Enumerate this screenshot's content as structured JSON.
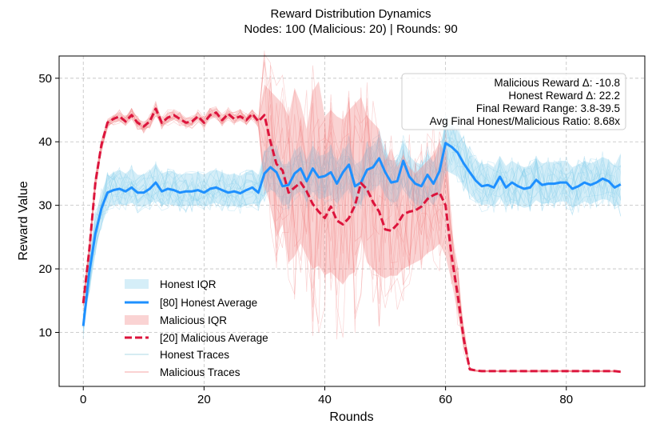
{
  "chart_data": {
    "type": "line",
    "title": "Reward Distribution Dynamics",
    "subtitle": "Nodes: 100 (Malicious: 20) | Rounds: 90",
    "xlabel": "Rounds",
    "ylabel": "Reward Value",
    "xlim": [
      -4,
      93
    ],
    "ylim": [
      1.5,
      53.5
    ],
    "xticks": [
      0,
      20,
      40,
      60,
      80
    ],
    "yticks": [
      10,
      20,
      30,
      40,
      50
    ],
    "grid": true,
    "legend_position": "lower-left",
    "colors": {
      "honest": "#1e90ff",
      "honest_band": "#87ceeb",
      "malicious": "#dc143c",
      "malicious_band": "#f08080"
    },
    "legend": [
      {
        "label": "Honest IQR",
        "kind": "band",
        "color": "#87ceeb"
      },
      {
        "label": "[80] Honest Average",
        "kind": "line",
        "color": "#1e90ff"
      },
      {
        "label": "Malicious IQR",
        "kind": "band",
        "color": "#f08080"
      },
      {
        "label": "[20] Malicious Average",
        "kind": "dashed",
        "color": "#dc143c"
      },
      {
        "label": "Honest Traces",
        "kind": "thin",
        "color": "#add8e6"
      },
      {
        "label": "Malicious Traces",
        "kind": "thin",
        "color": "#f4a6a6"
      }
    ],
    "annotations": [
      "Malicious Reward Δ: -10.8",
      "Honest Reward Δ: 22.2",
      "Final Reward Range: 3.8-39.5",
      "Avg Final Honest/Malicious Ratio: 8.68x"
    ],
    "x": [
      0,
      1,
      2,
      3,
      4,
      5,
      6,
      7,
      8,
      9,
      10,
      11,
      12,
      13,
      14,
      15,
      16,
      17,
      18,
      19,
      20,
      21,
      22,
      23,
      24,
      25,
      26,
      27,
      28,
      29,
      30,
      31,
      32,
      33,
      34,
      35,
      36,
      37,
      38,
      39,
      40,
      41,
      42,
      43,
      44,
      45,
      46,
      47,
      48,
      49,
      50,
      51,
      52,
      53,
      54,
      55,
      56,
      57,
      58,
      59,
      60,
      61,
      62,
      63,
      64,
      65,
      66,
      67,
      68,
      69,
      70,
      71,
      72,
      73,
      74,
      75,
      76,
      77,
      78,
      79,
      80,
      81,
      82,
      83,
      84,
      85,
      86,
      87,
      88,
      89
    ],
    "series": [
      {
        "name": "[80] Honest Average",
        "values": [
          11.0,
          19.5,
          25.5,
          29.5,
          32.0,
          32.4,
          32.6,
          32.2,
          32.8,
          32.0,
          32.0,
          32.6,
          33.6,
          32.2,
          32.6,
          32.4,
          32.0,
          32.2,
          32.2,
          32.4,
          32.0,
          32.6,
          32.8,
          32.4,
          32.0,
          32.2,
          31.9,
          32.4,
          32.8,
          32.0,
          35.0,
          36.0,
          35.2,
          33.0,
          33.2,
          35.0,
          35.8,
          33.8,
          35.8,
          34.4,
          34.6,
          35.2,
          33.4,
          35.2,
          36.4,
          33.0,
          33.6,
          35.6,
          36.0,
          37.4,
          35.2,
          33.6,
          33.8,
          37.0,
          34.5,
          33.4,
          33.0,
          34.8,
          33.4,
          35.4,
          39.8,
          39.2,
          38.3,
          36.6,
          35.2,
          33.9,
          33.0,
          33.2,
          32.8,
          34.5,
          32.8,
          33.6,
          33.0,
          32.6,
          32.8,
          34.0,
          33.2,
          33.4,
          33.4,
          33.6,
          33.6,
          32.6,
          33.0,
          33.6,
          33.2,
          33.6,
          34.2,
          33.8,
          32.8,
          33.3
        ],
        "iqr_low": [
          9.5,
          17.0,
          22.5,
          27.0,
          29.5,
          30.0,
          30.2,
          30.0,
          30.4,
          29.8,
          29.8,
          30.2,
          31.0,
          30.0,
          30.2,
          30.0,
          29.8,
          29.9,
          29.9,
          30.0,
          29.8,
          30.2,
          30.4,
          30.0,
          29.8,
          29.9,
          29.6,
          30.0,
          30.4,
          29.8,
          31.5,
          32.5,
          31.8,
          30.0,
          30.2,
          31.6,
          32.2,
          30.6,
          32.2,
          31.0,
          31.2,
          31.6,
          30.2,
          31.6,
          32.6,
          29.8,
          30.4,
          32.0,
          32.4,
          33.4,
          31.6,
          30.4,
          30.6,
          33.2,
          31.2,
          30.2,
          29.8,
          31.2,
          30.0,
          31.8,
          35.5,
          35.0,
          34.5,
          33.0,
          31.8,
          30.7,
          30.0,
          30.2,
          29.8,
          31.2,
          29.8,
          30.4,
          30.0,
          29.6,
          29.8,
          30.8,
          30.2,
          30.4,
          30.4,
          30.6,
          30.6,
          29.6,
          30.0,
          30.6,
          30.2,
          30.6,
          31.0,
          30.8,
          29.8,
          30.2
        ],
        "iqr_high": [
          12.5,
          22.0,
          28.5,
          32.0,
          34.5,
          35.2,
          35.6,
          35.0,
          35.8,
          34.8,
          34.8,
          35.4,
          36.6,
          35.0,
          35.4,
          35.2,
          34.8,
          35.0,
          35.0,
          35.2,
          34.8,
          35.4,
          35.6,
          35.2,
          34.8,
          35.0,
          34.6,
          35.2,
          35.6,
          34.8,
          38.5,
          39.5,
          38.6,
          36.4,
          36.6,
          38.5,
          39.4,
          37.2,
          39.4,
          37.8,
          38.0,
          38.6,
          36.8,
          38.6,
          39.8,
          36.4,
          37.0,
          39.0,
          39.4,
          40.8,
          38.6,
          37.0,
          37.2,
          40.4,
          37.8,
          36.8,
          36.4,
          38.2,
          36.8,
          38.8,
          43.0,
          42.6,
          41.8,
          40.0,
          38.6,
          37.2,
          36.4,
          36.6,
          36.0,
          37.8,
          36.2,
          37.0,
          36.4,
          36.0,
          36.2,
          37.4,
          36.6,
          36.8,
          36.8,
          37.0,
          37.0,
          36.0,
          36.4,
          37.0,
          36.6,
          37.0,
          37.6,
          37.2,
          36.2,
          38.2
        ]
      },
      {
        "name": "[20] Malicious Average",
        "values": [
          14.6,
          23.0,
          33.5,
          39.5,
          43.0,
          43.6,
          44.0,
          43.2,
          44.2,
          43.0,
          42.4,
          43.2,
          45.2,
          43.0,
          43.8,
          44.2,
          43.6,
          43.0,
          43.2,
          44.0,
          43.0,
          44.2,
          44.6,
          43.4,
          44.4,
          43.6,
          44.0,
          43.4,
          44.4,
          43.2,
          44.2,
          40.0,
          36.5,
          35.5,
          32.0,
          32.8,
          33.6,
          32.2,
          30.2,
          29.0,
          28.0,
          29.8,
          27.6,
          27.0,
          28.0,
          30.0,
          33.5,
          32.5,
          30.5,
          29.0,
          26.2,
          26.0,
          27.0,
          28.6,
          29.0,
          29.2,
          29.8,
          31.0,
          31.6,
          32.0,
          30.0,
          22.0,
          16.0,
          9.0,
          4.2,
          4.0,
          3.9,
          3.9,
          3.9,
          3.9,
          3.9,
          3.9,
          3.9,
          3.9,
          3.9,
          3.9,
          3.9,
          3.9,
          3.9,
          3.9,
          3.9,
          3.9,
          3.9,
          3.9,
          3.9,
          3.9,
          3.9,
          3.9,
          3.9,
          3.8
        ],
        "iqr_low": [
          14.0,
          22.0,
          32.5,
          38.8,
          42.4,
          43.0,
          43.3,
          42.5,
          43.5,
          42.3,
          41.7,
          42.5,
          44.4,
          42.3,
          43.0,
          43.5,
          42.9,
          42.3,
          42.5,
          43.3,
          42.3,
          43.5,
          43.9,
          42.7,
          43.7,
          42.9,
          43.3,
          42.7,
          43.7,
          42.5,
          33.0,
          30.0,
          25.0,
          27.0,
          21.0,
          22.0,
          24.0,
          22.0,
          20.0,
          20.5,
          19.0,
          19.5,
          18.5,
          17.5,
          19.0,
          19.5,
          25.0,
          21.0,
          20.0,
          19.0,
          18.5,
          19.0,
          19.0,
          20.0,
          20.5,
          21.0,
          21.5,
          22.5,
          23.0,
          24.0,
          22.0,
          18.0,
          13.0,
          7.5,
          4.0,
          3.9,
          3.8,
          3.8,
          3.8,
          3.8,
          3.8,
          3.8,
          3.8,
          3.8,
          3.8,
          3.8,
          3.8,
          3.8,
          3.8,
          3.8,
          3.8,
          3.8,
          3.8,
          3.8,
          3.8,
          3.8,
          3.8,
          3.8,
          3.8,
          3.7
        ],
        "iqr_high": [
          15.2,
          24.0,
          34.5,
          40.2,
          43.6,
          44.2,
          44.7,
          43.9,
          44.9,
          43.7,
          43.1,
          43.9,
          46.0,
          43.7,
          44.6,
          44.9,
          44.3,
          43.7,
          43.9,
          44.7,
          43.7,
          44.9,
          45.3,
          44.1,
          45.1,
          44.3,
          44.7,
          44.1,
          45.1,
          43.9,
          49.0,
          48.0,
          47.0,
          46.0,
          44.0,
          48.5,
          46.0,
          42.0,
          48.0,
          49.5,
          44.0,
          45.0,
          44.0,
          43.5,
          45.0,
          46.0,
          47.0,
          44.0,
          43.0,
          42.0,
          37.0,
          39.0,
          36.0,
          38.0,
          36.0,
          35.0,
          36.0,
          37.0,
          38.0,
          40.0,
          38.0,
          26.0,
          19.0,
          10.5,
          4.4,
          4.1,
          4.0,
          4.0,
          4.0,
          4.0,
          4.0,
          4.0,
          4.0,
          4.0,
          4.0,
          4.0,
          4.0,
          4.0,
          4.0,
          4.0,
          4.0,
          4.0,
          4.0,
          4.0,
          4.0,
          4.0,
          4.0,
          4.0,
          4.0,
          3.9
        ]
      }
    ]
  }
}
